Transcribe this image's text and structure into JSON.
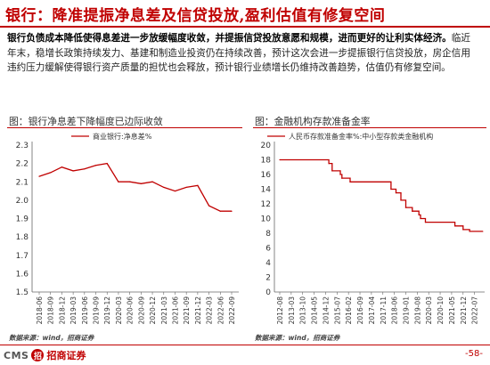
{
  "header": {
    "title": "银行：降准提振净息差及信贷投放,盈利估值有修复空间"
  },
  "body": {
    "bold_text": "银行负债成本降低使得息差进一步放缓幅度收敛，并提振信贷投放意愿和规模，进而更好的让利实体经济。",
    "rest_text": "临近年末，稳增长政策持续发力、基建和制造业投资仍在持续改善，预计这次会进一步提振银行信贷投放，房企信用违约压力缓解使得银行资产质量的担忧也会释放，预计银行业绩增长仍维持改善趋势，估值仍有修复空间。"
  },
  "colors": {
    "brand_red": "#c00000",
    "series_red": "#c00000"
  },
  "source_text": "数据来源：wind，招商证券",
  "footer": {
    "logo_latin": "CMS",
    "logo_mark": "招",
    "logo_name": "招商证券",
    "page_number": "-58-"
  },
  "chart_data": [
    {
      "type": "line",
      "title": "图：银行净息差下降幅度已边际收敛",
      "legend_label": "商业银行:净息差%",
      "legend_position": "top",
      "grid": false,
      "ylim": [
        1.5,
        2.3
      ],
      "yticks": [
        "1.5",
        "1.6",
        "1.7",
        "1.8",
        "1.9",
        "2.0",
        "2.1",
        "2.2",
        "2.3"
      ],
      "categories": [
        "2018-06",
        "2018-09",
        "2018-12",
        "2019-03",
        "2019-06",
        "2019-09",
        "2019-12",
        "2020-03",
        "2020-06",
        "2020-09",
        "2020-12",
        "2021-03",
        "2021-06",
        "2021-09",
        "2021-12",
        "2022-03",
        "2022-06",
        "2022-09"
      ],
      "xtick_labels": [
        "2018-06",
        "2018-09",
        "2018-12",
        "2019-03",
        "2019-06",
        "2019-09",
        "2019-12",
        "2020-03",
        "2020-06",
        "2020-09",
        "2020-12",
        "2021-03",
        "2021-06",
        "2021-09",
        "2021-12",
        "2022-03",
        "2022-06",
        "2022-09"
      ],
      "values": [
        2.13,
        2.15,
        2.18,
        2.16,
        2.17,
        2.19,
        2.2,
        2.1,
        2.1,
        2.09,
        2.1,
        2.07,
        2.05,
        2.07,
        2.08,
        1.97,
        1.94,
        1.94
      ]
    },
    {
      "type": "line",
      "step": true,
      "title": "图：金融机构存款准备金率",
      "legend_label": "人民币存款准备金率%:中小型存款类金融机构",
      "legend_position": "top",
      "grid": false,
      "ylim": [
        0,
        20
      ],
      "yticks": [
        "0",
        "2",
        "4",
        "6",
        "8",
        "10",
        "12",
        "14",
        "16",
        "18",
        "20"
      ],
      "xtick_labels": [
        "2012-08",
        "2013-03",
        "2013-10",
        "2014-05",
        "2014-12",
        "2015-07",
        "2016-02",
        "2016-09",
        "2017-04",
        "2017-11",
        "2018-06",
        "2019-01",
        "2019-08",
        "2020-03",
        "2020-10",
        "2021-05",
        "2021-12",
        "2022-07"
      ],
      "steps": [
        [
          "2012-08",
          18.0
        ],
        [
          "2015-02",
          17.5
        ],
        [
          "2015-04",
          16.5
        ],
        [
          "2015-09",
          16.0
        ],
        [
          "2015-10",
          15.5
        ],
        [
          "2016-03",
          15.0
        ],
        [
          "2018-04",
          14.0
        ],
        [
          "2018-07",
          13.5
        ],
        [
          "2018-10",
          12.5
        ],
        [
          "2019-01",
          11.5
        ],
        [
          "2019-05",
          11.0
        ],
        [
          "2019-09",
          10.5
        ],
        [
          "2019-10",
          10.0
        ],
        [
          "2020-01",
          9.5
        ],
        [
          "2021-07",
          9.0
        ],
        [
          "2021-12",
          8.5
        ],
        [
          "2022-04",
          8.25
        ],
        [
          "2022-12",
          8.25
        ]
      ]
    }
  ]
}
